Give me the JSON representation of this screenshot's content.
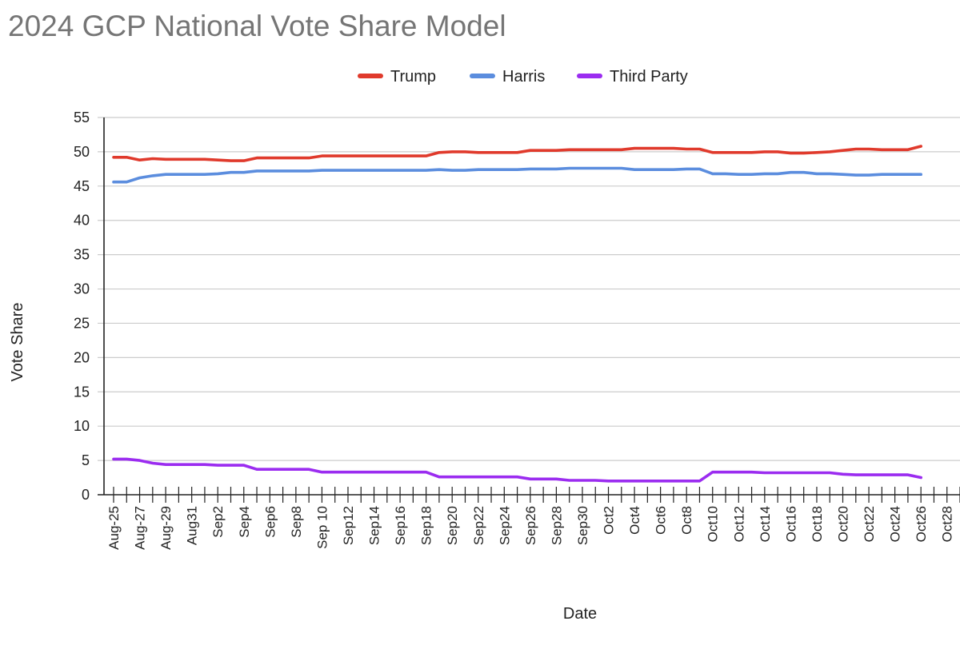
{
  "chart_data": {
    "type": "line",
    "title": "2024 GCP National Vote Share Model",
    "xlabel": "Date",
    "ylabel": "Vote Share",
    "ylim": [
      0,
      55
    ],
    "yticks": [
      0,
      5,
      10,
      15,
      20,
      25,
      30,
      35,
      40,
      45,
      50,
      55
    ],
    "grid": true,
    "legend_position": "top",
    "x_start": "2024-08-25",
    "x_end": "2024-10-29",
    "x_tick_labels": [
      "Aug-25",
      "Aug-27",
      "Aug-29",
      "Aug31",
      "Sep2",
      "Sep4",
      "Sep6",
      "Sep8",
      "Sep 10",
      "Sep12",
      "Sep14",
      "Sep16",
      "Sep18",
      "Sep20",
      "Sep22",
      "Sep24",
      "Sep26",
      "Sep28",
      "Sep30",
      "Oct2",
      "Oct4",
      "Oct6",
      "Oct8",
      "Oct10",
      "Oct12",
      "Oct14",
      "Oct16",
      "Oct18",
      "Oct20",
      "Oct22",
      "Oct24",
      "Oct26",
      "Oct28"
    ],
    "series": [
      {
        "name": "Trump",
        "color": "#e03a2c",
        "points": [
          [
            "2024-08-25",
            49.2
          ],
          [
            "2024-08-26",
            49.2
          ],
          [
            "2024-08-27",
            48.8
          ],
          [
            "2024-08-28",
            49.0
          ],
          [
            "2024-08-29",
            48.9
          ],
          [
            "2024-08-30",
            48.9
          ],
          [
            "2024-08-31",
            48.9
          ],
          [
            "2024-09-01",
            48.9
          ],
          [
            "2024-09-02",
            48.8
          ],
          [
            "2024-09-03",
            48.7
          ],
          [
            "2024-09-04",
            48.7
          ],
          [
            "2024-09-05",
            49.1
          ],
          [
            "2024-09-06",
            49.1
          ],
          [
            "2024-09-07",
            49.1
          ],
          [
            "2024-09-08",
            49.1
          ],
          [
            "2024-09-09",
            49.1
          ],
          [
            "2024-09-10",
            49.4
          ],
          [
            "2024-09-11",
            49.4
          ],
          [
            "2024-09-12",
            49.4
          ],
          [
            "2024-09-13",
            49.4
          ],
          [
            "2024-09-14",
            49.4
          ],
          [
            "2024-09-15",
            49.4
          ],
          [
            "2024-09-16",
            49.4
          ],
          [
            "2024-09-17",
            49.4
          ],
          [
            "2024-09-18",
            49.4
          ],
          [
            "2024-09-19",
            49.9
          ],
          [
            "2024-09-20",
            50.0
          ],
          [
            "2024-09-21",
            50.0
          ],
          [
            "2024-09-22",
            49.9
          ],
          [
            "2024-09-23",
            49.9
          ],
          [
            "2024-09-24",
            49.9
          ],
          [
            "2024-09-25",
            49.9
          ],
          [
            "2024-09-26",
            50.2
          ],
          [
            "2024-09-27",
            50.2
          ],
          [
            "2024-09-28",
            50.2
          ],
          [
            "2024-09-29",
            50.3
          ],
          [
            "2024-09-30",
            50.3
          ],
          [
            "2024-10-01",
            50.3
          ],
          [
            "2024-10-02",
            50.3
          ],
          [
            "2024-10-03",
            50.3
          ],
          [
            "2024-10-04",
            50.5
          ],
          [
            "2024-10-05",
            50.5
          ],
          [
            "2024-10-06",
            50.5
          ],
          [
            "2024-10-07",
            50.5
          ],
          [
            "2024-10-08",
            50.4
          ],
          [
            "2024-10-09",
            50.4
          ],
          [
            "2024-10-10",
            49.9
          ],
          [
            "2024-10-11",
            49.9
          ],
          [
            "2024-10-12",
            49.9
          ],
          [
            "2024-10-13",
            49.9
          ],
          [
            "2024-10-14",
            50.0
          ],
          [
            "2024-10-15",
            50.0
          ],
          [
            "2024-10-16",
            49.8
          ],
          [
            "2024-10-17",
            49.8
          ],
          [
            "2024-10-18",
            49.9
          ],
          [
            "2024-10-19",
            50.0
          ],
          [
            "2024-10-20",
            50.2
          ],
          [
            "2024-10-21",
            50.4
          ],
          [
            "2024-10-22",
            50.4
          ],
          [
            "2024-10-23",
            50.3
          ],
          [
            "2024-10-24",
            50.3
          ],
          [
            "2024-10-25",
            50.3
          ],
          [
            "2024-10-26",
            50.8
          ]
        ]
      },
      {
        "name": "Harris",
        "color": "#5b8dde",
        "points": [
          [
            "2024-08-25",
            45.6
          ],
          [
            "2024-08-26",
            45.6
          ],
          [
            "2024-08-27",
            46.2
          ],
          [
            "2024-08-28",
            46.5
          ],
          [
            "2024-08-29",
            46.7
          ],
          [
            "2024-08-30",
            46.7
          ],
          [
            "2024-08-31",
            46.7
          ],
          [
            "2024-09-01",
            46.7
          ],
          [
            "2024-09-02",
            46.8
          ],
          [
            "2024-09-03",
            47.0
          ],
          [
            "2024-09-04",
            47.0
          ],
          [
            "2024-09-05",
            47.2
          ],
          [
            "2024-09-06",
            47.2
          ],
          [
            "2024-09-07",
            47.2
          ],
          [
            "2024-09-08",
            47.2
          ],
          [
            "2024-09-09",
            47.2
          ],
          [
            "2024-09-10",
            47.3
          ],
          [
            "2024-09-11",
            47.3
          ],
          [
            "2024-09-12",
            47.3
          ],
          [
            "2024-09-13",
            47.3
          ],
          [
            "2024-09-14",
            47.3
          ],
          [
            "2024-09-15",
            47.3
          ],
          [
            "2024-09-16",
            47.3
          ],
          [
            "2024-09-17",
            47.3
          ],
          [
            "2024-09-18",
            47.3
          ],
          [
            "2024-09-19",
            47.4
          ],
          [
            "2024-09-20",
            47.3
          ],
          [
            "2024-09-21",
            47.3
          ],
          [
            "2024-09-22",
            47.4
          ],
          [
            "2024-09-23",
            47.4
          ],
          [
            "2024-09-24",
            47.4
          ],
          [
            "2024-09-25",
            47.4
          ],
          [
            "2024-09-26",
            47.5
          ],
          [
            "2024-09-27",
            47.5
          ],
          [
            "2024-09-28",
            47.5
          ],
          [
            "2024-09-29",
            47.6
          ],
          [
            "2024-09-30",
            47.6
          ],
          [
            "2024-10-01",
            47.6
          ],
          [
            "2024-10-02",
            47.6
          ],
          [
            "2024-10-03",
            47.6
          ],
          [
            "2024-10-04",
            47.4
          ],
          [
            "2024-10-05",
            47.4
          ],
          [
            "2024-10-06",
            47.4
          ],
          [
            "2024-10-07",
            47.4
          ],
          [
            "2024-10-08",
            47.5
          ],
          [
            "2024-10-09",
            47.5
          ],
          [
            "2024-10-10",
            46.8
          ],
          [
            "2024-10-11",
            46.8
          ],
          [
            "2024-10-12",
            46.7
          ],
          [
            "2024-10-13",
            46.7
          ],
          [
            "2024-10-14",
            46.8
          ],
          [
            "2024-10-15",
            46.8
          ],
          [
            "2024-10-16",
            47.0
          ],
          [
            "2024-10-17",
            47.0
          ],
          [
            "2024-10-18",
            46.8
          ],
          [
            "2024-10-19",
            46.8
          ],
          [
            "2024-10-20",
            46.7
          ],
          [
            "2024-10-21",
            46.6
          ],
          [
            "2024-10-22",
            46.6
          ],
          [
            "2024-10-23",
            46.7
          ],
          [
            "2024-10-24",
            46.7
          ],
          [
            "2024-10-25",
            46.7
          ],
          [
            "2024-10-26",
            46.7
          ]
        ]
      },
      {
        "name": "Third Party",
        "color": "#9b2cf0",
        "points": [
          [
            "2024-08-25",
            5.2
          ],
          [
            "2024-08-26",
            5.2
          ],
          [
            "2024-08-27",
            5.0
          ],
          [
            "2024-08-28",
            4.6
          ],
          [
            "2024-08-29",
            4.4
          ],
          [
            "2024-08-30",
            4.4
          ],
          [
            "2024-08-31",
            4.4
          ],
          [
            "2024-09-01",
            4.4
          ],
          [
            "2024-09-02",
            4.3
          ],
          [
            "2024-09-03",
            4.3
          ],
          [
            "2024-09-04",
            4.3
          ],
          [
            "2024-09-05",
            3.7
          ],
          [
            "2024-09-06",
            3.7
          ],
          [
            "2024-09-07",
            3.7
          ],
          [
            "2024-09-08",
            3.7
          ],
          [
            "2024-09-09",
            3.7
          ],
          [
            "2024-09-10",
            3.3
          ],
          [
            "2024-09-11",
            3.3
          ],
          [
            "2024-09-12",
            3.3
          ],
          [
            "2024-09-13",
            3.3
          ],
          [
            "2024-09-14",
            3.3
          ],
          [
            "2024-09-15",
            3.3
          ],
          [
            "2024-09-16",
            3.3
          ],
          [
            "2024-09-17",
            3.3
          ],
          [
            "2024-09-18",
            3.3
          ],
          [
            "2024-09-19",
            2.6
          ],
          [
            "2024-09-20",
            2.6
          ],
          [
            "2024-09-21",
            2.6
          ],
          [
            "2024-09-22",
            2.6
          ],
          [
            "2024-09-23",
            2.6
          ],
          [
            "2024-09-24",
            2.6
          ],
          [
            "2024-09-25",
            2.6
          ],
          [
            "2024-09-26",
            2.3
          ],
          [
            "2024-09-27",
            2.3
          ],
          [
            "2024-09-28",
            2.3
          ],
          [
            "2024-09-29",
            2.1
          ],
          [
            "2024-09-30",
            2.1
          ],
          [
            "2024-10-01",
            2.1
          ],
          [
            "2024-10-02",
            2.0
          ],
          [
            "2024-10-03",
            2.0
          ],
          [
            "2024-10-04",
            2.0
          ],
          [
            "2024-10-05",
            2.0
          ],
          [
            "2024-10-06",
            2.0
          ],
          [
            "2024-10-07",
            2.0
          ],
          [
            "2024-10-08",
            2.0
          ],
          [
            "2024-10-09",
            2.0
          ],
          [
            "2024-10-10",
            3.3
          ],
          [
            "2024-10-11",
            3.3
          ],
          [
            "2024-10-12",
            3.3
          ],
          [
            "2024-10-13",
            3.3
          ],
          [
            "2024-10-14",
            3.2
          ],
          [
            "2024-10-15",
            3.2
          ],
          [
            "2024-10-16",
            3.2
          ],
          [
            "2024-10-17",
            3.2
          ],
          [
            "2024-10-18",
            3.2
          ],
          [
            "2024-10-19",
            3.2
          ],
          [
            "2024-10-20",
            3.0
          ],
          [
            "2024-10-21",
            2.9
          ],
          [
            "2024-10-22",
            2.9
          ],
          [
            "2024-10-23",
            2.9
          ],
          [
            "2024-10-24",
            2.9
          ],
          [
            "2024-10-25",
            2.9
          ],
          [
            "2024-10-26",
            2.5
          ]
        ]
      }
    ]
  }
}
